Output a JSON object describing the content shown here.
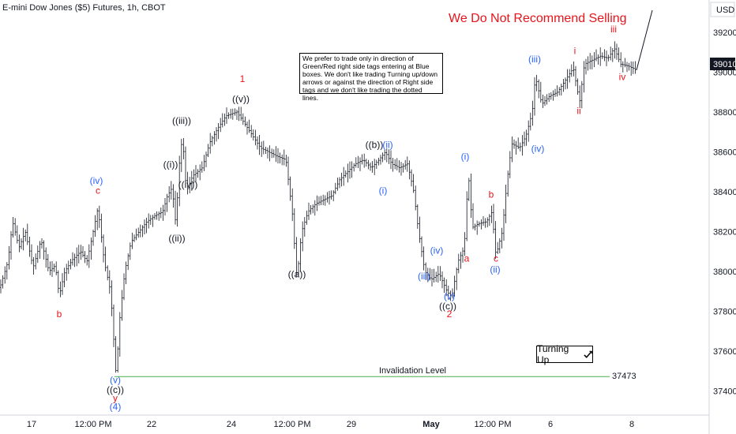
{
  "chart_data": {
    "type": "candlestick",
    "title": "E-mini Dow Jones ($5) Futures, 1h, CBOT",
    "currency": "USD",
    "ylim": [
      37280,
      39330
    ],
    "y_ticks": [
      37400,
      37600,
      37800,
      38000,
      38200,
      38400,
      38600,
      38800,
      39000,
      39200
    ],
    "x_ticks": [
      "17",
      "12:00 PM",
      "22",
      "24",
      "12:00 PM",
      "29",
      "May",
      "12:00 PM",
      "6",
      "8"
    ],
    "last_price": "39010",
    "price_path": [
      [
        0,
        37920
      ],
      [
        10,
        38050
      ],
      [
        16,
        38250
      ],
      [
        24,
        38120
      ],
      [
        32,
        38200
      ],
      [
        42,
        38020
      ],
      [
        52,
        38160
      ],
      [
        62,
        38000
      ],
      [
        70,
        38030
      ],
      [
        75,
        37880
      ],
      [
        82,
        38000
      ],
      [
        92,
        38060
      ],
      [
        102,
        38100
      ],
      [
        110,
        38050
      ],
      [
        118,
        38200
      ],
      [
        124,
        38320
      ],
      [
        132,
        38050
      ],
      [
        140,
        37900
      ],
      [
        147,
        37480
      ],
      [
        152,
        37780
      ],
      [
        158,
        38000
      ],
      [
        166,
        38150
      ],
      [
        176,
        38200
      ],
      [
        186,
        38250
      ],
      [
        196,
        38280
      ],
      [
        206,
        38300
      ],
      [
        212,
        38380
      ],
      [
        218,
        38420
      ],
      [
        223,
        38220
      ],
      [
        226,
        38500
      ],
      [
        231,
        38680
      ],
      [
        236,
        38400
      ],
      [
        244,
        38480
      ],
      [
        256,
        38520
      ],
      [
        266,
        38650
      ],
      [
        276,
        38720
      ],
      [
        286,
        38780
      ],
      [
        300,
        38800
      ],
      [
        310,
        38740
      ],
      [
        320,
        38680
      ],
      [
        330,
        38620
      ],
      [
        340,
        38600
      ],
      [
        350,
        38580
      ],
      [
        362,
        38560
      ],
      [
        370,
        38300
      ],
      [
        376,
        37960
      ],
      [
        382,
        38200
      ],
      [
        390,
        38300
      ],
      [
        400,
        38340
      ],
      [
        410,
        38360
      ],
      [
        420,
        38380
      ],
      [
        430,
        38460
      ],
      [
        440,
        38500
      ],
      [
        450,
        38540
      ],
      [
        460,
        38560
      ],
      [
        470,
        38520
      ],
      [
        480,
        38560
      ],
      [
        488,
        38600
      ],
      [
        496,
        38540
      ],
      [
        506,
        38520
      ],
      [
        516,
        38540
      ],
      [
        524,
        38400
      ],
      [
        530,
        38200
      ],
      [
        538,
        38000
      ],
      [
        546,
        37960
      ],
      [
        556,
        37990
      ],
      [
        566,
        37900
      ],
      [
        572,
        37870
      ],
      [
        580,
        38050
      ],
      [
        588,
        38120
      ],
      [
        593,
        38500
      ],
      [
        598,
        38220
      ],
      [
        606,
        38240
      ],
      [
        616,
        38250
      ],
      [
        623,
        38300
      ],
      [
        628,
        38080
      ],
      [
        636,
        38200
      ],
      [
        642,
        38450
      ],
      [
        648,
        38640
      ],
      [
        658,
        38620
      ],
      [
        666,
        38680
      ],
      [
        674,
        38800
      ],
      [
        678,
        38980
      ],
      [
        686,
        38840
      ],
      [
        696,
        38880
      ],
      [
        706,
        38900
      ],
      [
        716,
        38960
      ],
      [
        726,
        39020
      ],
      [
        734,
        38850
      ],
      [
        740,
        39040
      ],
      [
        750,
        39060
      ],
      [
        760,
        39080
      ],
      [
        770,
        39070
      ],
      [
        778,
        39120
      ],
      [
        786,
        39040
      ],
      [
        796,
        39030
      ],
      [
        806,
        39010
      ],
      [
        826,
        39310
      ]
    ],
    "annotations": [
      {
        "text": "b",
        "x": 75,
        "y": 37770,
        "color": "red"
      },
      {
        "text": "(iv)",
        "x": 122,
        "y": 38440,
        "color": "blue"
      },
      {
        "text": "c",
        "x": 124,
        "y": 38390,
        "color": "red"
      },
      {
        "text": "(v)",
        "x": 146,
        "y": 37440,
        "color": "blue"
      },
      {
        "text": "((c))",
        "x": 146,
        "y": 37390,
        "color": "black"
      },
      {
        "text": "y",
        "x": 146,
        "y": 37350,
        "color": "red"
      },
      {
        "text": "(4)",
        "x": 146,
        "y": 37305,
        "color": "blue"
      },
      {
        "text": "((i))",
        "x": 216,
        "y": 38520,
        "color": "black"
      },
      {
        "text": "((ii))",
        "x": 224,
        "y": 38150,
        "color": "black"
      },
      {
        "text": "((iii))",
        "x": 230,
        "y": 38740,
        "color": "black"
      },
      {
        "text": "((iv))",
        "x": 238,
        "y": 38420,
        "color": "black"
      },
      {
        "text": "1",
        "x": 307,
        "y": 38950,
        "color": "red"
      },
      {
        "text": "((v))",
        "x": 305,
        "y": 38850,
        "color": "black"
      },
      {
        "text": "((a))",
        "x": 376,
        "y": 37970,
        "color": "black"
      },
      {
        "text": "((b))",
        "x": 474,
        "y": 38620,
        "color": "black"
      },
      {
        "text": "(ii)",
        "x": 491,
        "y": 38620,
        "color": "blue"
      },
      {
        "text": "(i)",
        "x": 485,
        "y": 38390,
        "color": "blue"
      },
      {
        "text": "(iii)",
        "x": 537,
        "y": 37960,
        "color": "blue"
      },
      {
        "text": "(iv)",
        "x": 553,
        "y": 38090,
        "color": "blue"
      },
      {
        "text": "(v)",
        "x": 569,
        "y": 37860,
        "color": "blue"
      },
      {
        "text": "((c))",
        "x": 567,
        "y": 37810,
        "color": "black"
      },
      {
        "text": "2",
        "x": 569,
        "y": 37770,
        "color": "red"
      },
      {
        "text": "(i)",
        "x": 589,
        "y": 38560,
        "color": "blue"
      },
      {
        "text": "a",
        "x": 591,
        "y": 38050,
        "color": "red"
      },
      {
        "text": "b",
        "x": 622,
        "y": 38370,
        "color": "red"
      },
      {
        "text": "c",
        "x": 628,
        "y": 38050,
        "color": "red"
      },
      {
        "text": "(ii)",
        "x": 627,
        "y": 37995,
        "color": "blue"
      },
      {
        "text": "(iii)",
        "x": 677,
        "y": 39050,
        "color": "blue"
      },
      {
        "text": "(iv)",
        "x": 681,
        "y": 38600,
        "color": "blue"
      },
      {
        "text": "i",
        "x": 728,
        "y": 39090,
        "color": "red"
      },
      {
        "text": "ii",
        "x": 733,
        "y": 38790,
        "color": "red"
      },
      {
        "text": "iii",
        "x": 777,
        "y": 39200,
        "color": "red"
      },
      {
        "text": "iv",
        "x": 788,
        "y": 38960,
        "color": "red"
      }
    ],
    "invalidation": {
      "label": "Invalidation Level",
      "value": 37473,
      "value_label": "37473",
      "x_start": 145,
      "x_end": 772
    }
  },
  "note_text": "We prefer to trade only in direction of Green/Red right side tags entering at Blue boxes. We don't like trading Turning up/down arrows or against the direction of Right side tags and we don't like trading the dotted lines.",
  "recommend_text": "We Do Not Recommend Selling",
  "turning_text": "Turning Up",
  "turning_icon": "check-arrow-icon",
  "colors": {
    "red": "#e8141b",
    "blue": "#2962ff",
    "black": "#131722",
    "green": "#4caf50",
    "grid": "#d1d4dc"
  }
}
